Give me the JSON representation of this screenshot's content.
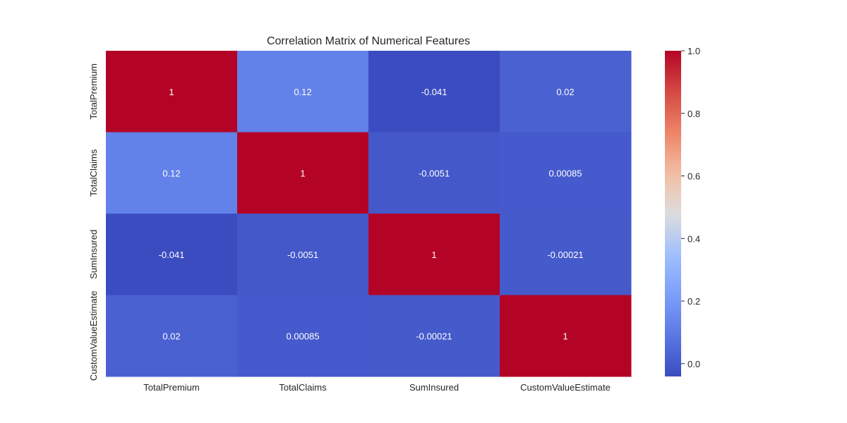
{
  "chart_data": {
    "type": "heatmap",
    "title": "Correlation Matrix of Numerical Features",
    "x_labels": [
      "TotalPremium",
      "TotalClaims",
      "SumInsured",
      "CustomValueEstimate"
    ],
    "y_labels": [
      "TotalPremium",
      "TotalClaims",
      "SumInsured",
      "CustomValueEstimate"
    ],
    "values": [
      [
        1,
        0.12,
        -0.041,
        0.02
      ],
      [
        0.12,
        1,
        -0.0051,
        0.00085
      ],
      [
        -0.041,
        -0.0051,
        1,
        -0.00021
      ],
      [
        0.02,
        0.00085,
        -0.00021,
        1
      ]
    ],
    "annotations": [
      [
        "1",
        "0.12",
        "-0.041",
        "0.02"
      ],
      [
        "0.12",
        "1",
        "-0.0051",
        "0.00085"
      ],
      [
        "-0.041",
        "-0.0051",
        "1",
        "-0.00021"
      ],
      [
        "0.02",
        "0.00085",
        "-0.00021",
        "1"
      ]
    ],
    "colormap": "coolwarm",
    "vmin": -0.041,
    "vmax": 1.0,
    "colorbar": {
      "ticks": [
        0.0,
        0.2,
        0.4,
        0.6,
        0.8,
        1.0
      ],
      "tick_labels": [
        "0.0",
        "0.2",
        "0.4",
        "0.6",
        "0.8",
        "1.0"
      ]
    }
  }
}
